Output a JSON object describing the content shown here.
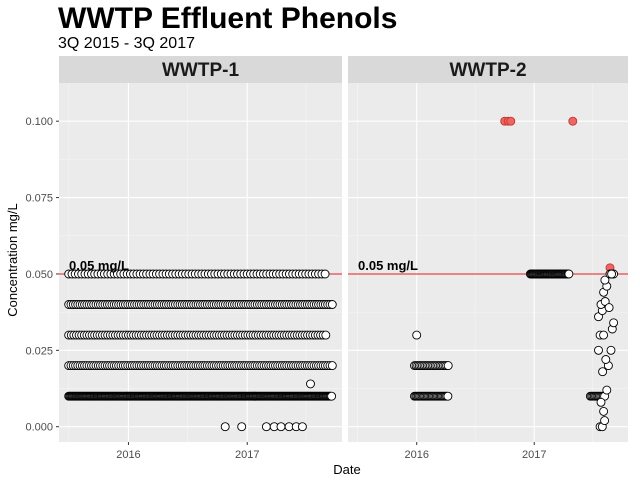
{
  "title": "WWTP Effluent Phenols",
  "subtitle": "3Q 2015 - 3Q 2017",
  "chart_data": {
    "type": "scatter",
    "xlabel": "Date",
    "ylabel": "Concentration mg/L",
    "x_ticks": [
      "2016",
      "2017"
    ],
    "y_ticks": [
      "0.000",
      "0.025",
      "0.050",
      "0.075",
      "0.100"
    ],
    "xlim": [
      "2015-06-01",
      "2017-10-20"
    ],
    "ylim": [
      -0.005,
      0.1125
    ],
    "grid": true,
    "reference_line": {
      "value": 0.05,
      "label": "0.05 mg/L",
      "color": "#e41a1c"
    },
    "colors": {
      "normal": "#ffffff",
      "exceed": "#f16465"
    },
    "facets": [
      {
        "label": "WWTP-1",
        "clusters": [
          {
            "y": 0.01,
            "from": "2015-07-01",
            "to": "2017-09-20",
            "step": 3
          },
          {
            "y": 0.02,
            "from": "2015-07-01",
            "to": "2017-09-20",
            "step": 7
          },
          {
            "y": 0.03,
            "from": "2015-07-01",
            "to": "2017-09-05",
            "step": 8
          },
          {
            "y": 0.04,
            "from": "2015-07-01",
            "to": "2017-09-20",
            "step": 7
          },
          {
            "y": 0.05,
            "from": "2015-07-01",
            "to": "2017-09-05",
            "step": 10
          }
        ],
        "points": [
          {
            "x": "2016-10-25",
            "y": 0.0
          },
          {
            "x": "2016-12-15",
            "y": 0.0
          },
          {
            "x": "2017-03-01",
            "y": 0.0
          },
          {
            "x": "2017-03-25",
            "y": 0.0
          },
          {
            "x": "2017-04-15",
            "y": 0.0
          },
          {
            "x": "2017-05-10",
            "y": 0.0
          },
          {
            "x": "2017-06-01",
            "y": 0.0
          },
          {
            "x": "2017-06-20",
            "y": 0.0
          },
          {
            "x": "2017-07-15",
            "y": 0.014
          }
        ]
      },
      {
        "label": "WWTP-2",
        "clusters": [
          {
            "y": 0.01,
            "from": "2015-12-25",
            "to": "2016-04-10",
            "step": 4
          },
          {
            "y": 0.02,
            "from": "2015-12-25",
            "to": "2016-04-10",
            "step": 5
          },
          {
            "y": 0.05,
            "from": "2016-12-20",
            "to": "2017-04-20",
            "step": 3
          },
          {
            "y": 0.01,
            "from": "2017-06-25",
            "to": "2017-08-10",
            "step": 4
          }
        ],
        "points": [
          {
            "x": "2016-01-01",
            "y": 0.03
          },
          {
            "x": "2016-10-01",
            "y": 0.1,
            "exceed": true
          },
          {
            "x": "2016-10-12",
            "y": 0.1,
            "exceed": true
          },
          {
            "x": "2016-10-20",
            "y": 0.1,
            "exceed": true
          },
          {
            "x": "2017-05-01",
            "y": 0.1,
            "exceed": true
          },
          {
            "x": "2017-08-25",
            "y": 0.052,
            "exceed": true
          },
          {
            "x": "2017-07-25",
            "y": 0.0
          },
          {
            "x": "2017-08-01",
            "y": 0.0
          },
          {
            "x": "2017-08-08",
            "y": 0.002
          },
          {
            "x": "2017-08-05",
            "y": 0.005
          },
          {
            "x": "2017-07-28",
            "y": 0.008
          },
          {
            "x": "2017-08-15",
            "y": 0.012
          },
          {
            "x": "2017-08-02",
            "y": 0.018
          },
          {
            "x": "2017-08-20",
            "y": 0.02
          },
          {
            "x": "2017-07-20",
            "y": 0.025
          },
          {
            "x": "2017-08-12",
            "y": 0.022
          },
          {
            "x": "2017-08-28",
            "y": 0.025
          },
          {
            "x": "2017-07-25",
            "y": 0.03
          },
          {
            "x": "2017-08-05",
            "y": 0.03
          },
          {
            "x": "2017-09-01",
            "y": 0.032
          },
          {
            "x": "2017-09-05",
            "y": 0.034
          },
          {
            "x": "2017-07-20",
            "y": 0.036
          },
          {
            "x": "2017-08-01",
            "y": 0.038
          },
          {
            "x": "2017-07-28",
            "y": 0.04
          },
          {
            "x": "2017-08-10",
            "y": 0.041
          },
          {
            "x": "2017-08-22",
            "y": 0.039
          },
          {
            "x": "2017-08-05",
            "y": 0.044
          },
          {
            "x": "2017-08-15",
            "y": 0.046
          },
          {
            "x": "2017-08-09",
            "y": 0.048
          },
          {
            "x": "2017-08-25",
            "y": 0.05
          },
          {
            "x": "2017-09-01",
            "y": 0.05
          },
          {
            "x": "2017-09-05",
            "y": 0.05
          },
          {
            "x": "2017-08-30",
            "y": 0.05
          }
        ]
      }
    ]
  }
}
